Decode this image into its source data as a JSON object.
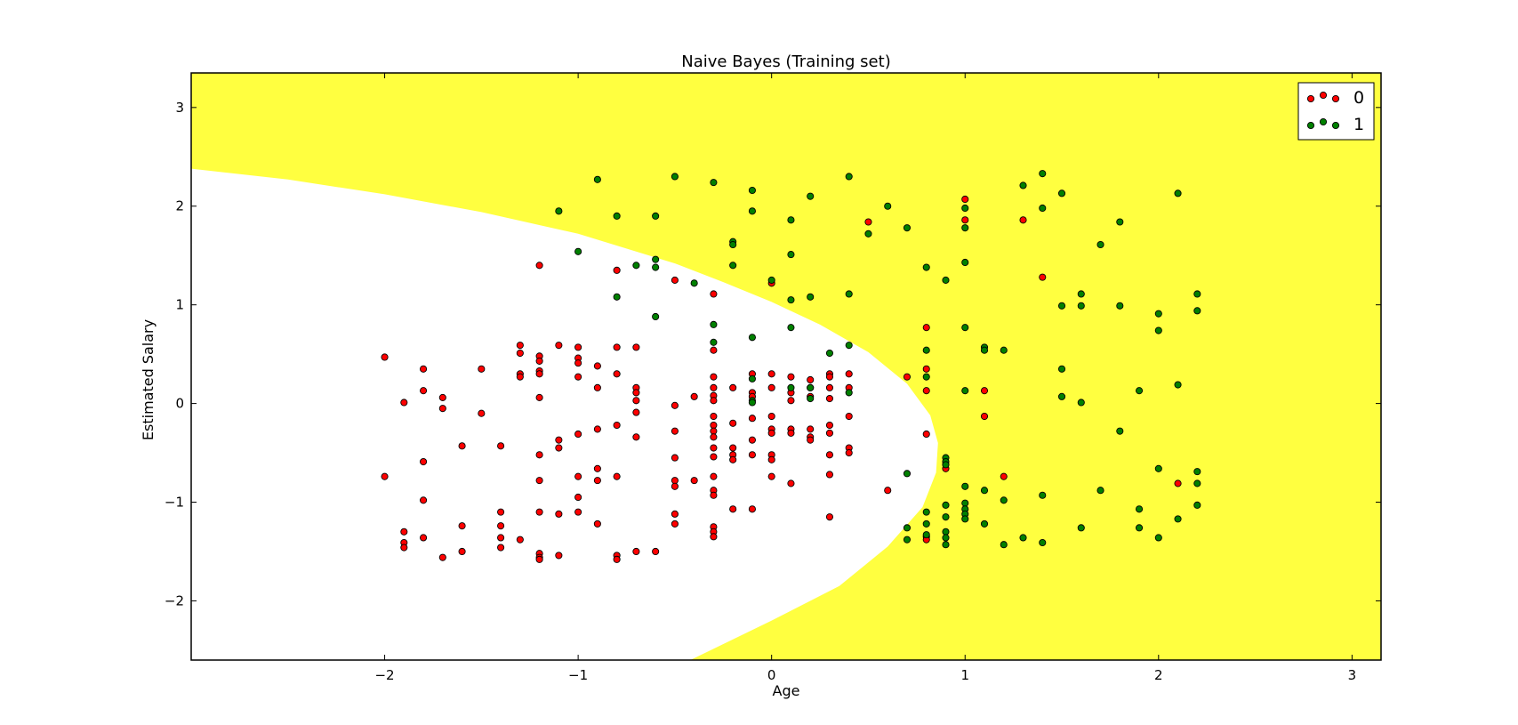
{
  "chart_data": {
    "type": "scatter",
    "title": "Naive Bayes (Training set)",
    "xlabel": "Age",
    "ylabel": "Estimated Salary",
    "xlim": [
      -3.0,
      3.15
    ],
    "ylim": [
      -2.6,
      3.35
    ],
    "xticks": [
      -2,
      -1,
      0,
      1,
      2,
      3
    ],
    "yticks": [
      -2,
      -1,
      0,
      1,
      2,
      3
    ],
    "tick_labels": {
      "x": [
        "−2",
        "−1",
        "0",
        "1",
        "2",
        "3"
      ],
      "y": [
        "−2",
        "−1",
        "0",
        "1",
        "2",
        "3"
      ]
    },
    "grid": false,
    "legend_position": "top-right",
    "background": {
      "region_class_0_color": "#ffffff",
      "region_class_1_color": "#ffff40",
      "boundary_class_0_region": [
        [
          -3.0,
          2.38
        ],
        [
          -2.5,
          2.27
        ],
        [
          -2.0,
          2.12
        ],
        [
          -1.5,
          1.94
        ],
        [
          -1.0,
          1.72
        ],
        [
          -0.5,
          1.42
        ],
        [
          -0.25,
          1.23
        ],
        [
          0.0,
          1.03
        ],
        [
          0.25,
          0.8
        ],
        [
          0.5,
          0.52
        ],
        [
          0.7,
          0.2
        ],
        [
          0.82,
          -0.12
        ],
        [
          0.86,
          -0.4
        ],
        [
          0.85,
          -0.7
        ],
        [
          0.78,
          -1.05
        ],
        [
          0.6,
          -1.45
        ],
        [
          0.35,
          -1.85
        ],
        [
          0.0,
          -2.2
        ],
        [
          -0.42,
          -2.6
        ]
      ]
    },
    "series": [
      {
        "name": "0",
        "color": "#ff0000",
        "points": [
          [
            -2.0,
            0.47
          ],
          [
            -2.0,
            -0.74
          ],
          [
            -1.9,
            0.01
          ],
          [
            -1.9,
            -1.3
          ],
          [
            -1.9,
            -1.41
          ],
          [
            -1.9,
            -1.46
          ],
          [
            -1.8,
            0.35
          ],
          [
            -1.8,
            0.13
          ],
          [
            -1.8,
            -0.59
          ],
          [
            -1.8,
            -0.98
          ],
          [
            -1.8,
            -1.36
          ],
          [
            -1.7,
            0.06
          ],
          [
            -1.7,
            -0.05
          ],
          [
            -1.7,
            -1.56
          ],
          [
            -1.6,
            -0.43
          ],
          [
            -1.6,
            -1.24
          ],
          [
            -1.6,
            -1.5
          ],
          [
            -1.5,
            0.35
          ],
          [
            -1.5,
            -0.1
          ],
          [
            -1.4,
            -0.43
          ],
          [
            -1.4,
            -1.1
          ],
          [
            -1.4,
            -1.24
          ],
          [
            -1.4,
            -1.36
          ],
          [
            -1.4,
            -1.46
          ],
          [
            -1.3,
            0.59
          ],
          [
            -1.3,
            0.51
          ],
          [
            -1.3,
            0.3
          ],
          [
            -1.3,
            0.27
          ],
          [
            -1.3,
            -1.38
          ],
          [
            -1.2,
            1.4
          ],
          [
            -1.2,
            0.48
          ],
          [
            -1.2,
            0.43
          ],
          [
            -1.2,
            0.33
          ],
          [
            -1.2,
            0.3
          ],
          [
            -1.2,
            0.06
          ],
          [
            -1.2,
            -0.52
          ],
          [
            -1.2,
            -0.78
          ],
          [
            -1.2,
            -1.1
          ],
          [
            -1.2,
            -1.52
          ],
          [
            -1.2,
            -1.56
          ],
          [
            -1.2,
            -1.58
          ],
          [
            -1.1,
            0.59
          ],
          [
            -1.1,
            -0.37
          ],
          [
            -1.1,
            -0.45
          ],
          [
            -1.1,
            -1.12
          ],
          [
            -1.1,
            -1.54
          ],
          [
            -1.0,
            0.57
          ],
          [
            -1.0,
            0.46
          ],
          [
            -1.0,
            0.41
          ],
          [
            -1.0,
            0.27
          ],
          [
            -1.0,
            -0.31
          ],
          [
            -1.0,
            -0.74
          ],
          [
            -1.0,
            -0.95
          ],
          [
            -1.0,
            -1.1
          ],
          [
            -0.9,
            0.38
          ],
          [
            -0.9,
            0.16
          ],
          [
            -0.9,
            -0.26
          ],
          [
            -0.9,
            -0.66
          ],
          [
            -0.9,
            -0.78
          ],
          [
            -0.9,
            -1.22
          ],
          [
            -0.8,
            1.35
          ],
          [
            -0.8,
            0.57
          ],
          [
            -0.8,
            0.3
          ],
          [
            -0.8,
            -0.22
          ],
          [
            -0.8,
            -0.74
          ],
          [
            -0.8,
            -1.54
          ],
          [
            -0.8,
            -1.58
          ],
          [
            -0.7,
            0.57
          ],
          [
            -0.7,
            0.16
          ],
          [
            -0.7,
            0.11
          ],
          [
            -0.7,
            0.03
          ],
          [
            -0.7,
            -0.09
          ],
          [
            -0.7,
            -0.34
          ],
          [
            -0.7,
            -1.5
          ],
          [
            -0.6,
            -1.5
          ],
          [
            -0.5,
            1.25
          ],
          [
            -0.5,
            -0.02
          ],
          [
            -0.5,
            -0.28
          ],
          [
            -0.5,
            -0.55
          ],
          [
            -0.5,
            -0.78
          ],
          [
            -0.5,
            -0.84
          ],
          [
            -0.5,
            -1.12
          ],
          [
            -0.5,
            -1.22
          ],
          [
            -0.4,
            0.07
          ],
          [
            -0.4,
            -0.78
          ],
          [
            -0.3,
            1.11
          ],
          [
            -0.3,
            0.54
          ],
          [
            -0.3,
            0.27
          ],
          [
            -0.3,
            0.16
          ],
          [
            -0.3,
            0.08
          ],
          [
            -0.3,
            0.03
          ],
          [
            -0.3,
            -0.13
          ],
          [
            -0.3,
            -0.22
          ],
          [
            -0.3,
            -0.28
          ],
          [
            -0.3,
            -0.34
          ],
          [
            -0.3,
            -0.45
          ],
          [
            -0.3,
            -0.54
          ],
          [
            -0.3,
            -0.74
          ],
          [
            -0.3,
            -0.88
          ],
          [
            -0.3,
            -0.93
          ],
          [
            -0.3,
            -1.25
          ],
          [
            -0.3,
            -1.3
          ],
          [
            -0.3,
            -1.35
          ],
          [
            -0.2,
            0.16
          ],
          [
            -0.2,
            -0.2
          ],
          [
            -0.2,
            -0.45
          ],
          [
            -0.2,
            -0.52
          ],
          [
            -0.2,
            -0.57
          ],
          [
            -0.2,
            -1.07
          ],
          [
            -0.1,
            0.3
          ],
          [
            -0.1,
            0.11
          ],
          [
            -0.1,
            0.07
          ],
          [
            -0.1,
            -0.15
          ],
          [
            -0.1,
            -0.37
          ],
          [
            -0.1,
            -0.52
          ],
          [
            -0.1,
            -1.07
          ],
          [
            0.0,
            1.22
          ],
          [
            0.0,
            0.3
          ],
          [
            0.0,
            0.16
          ],
          [
            0.0,
            -0.13
          ],
          [
            0.0,
            -0.26
          ],
          [
            0.0,
            -0.3
          ],
          [
            0.0,
            -0.52
          ],
          [
            0.0,
            -0.57
          ],
          [
            0.0,
            -0.74
          ],
          [
            0.1,
            0.27
          ],
          [
            0.1,
            0.11
          ],
          [
            0.1,
            0.03
          ],
          [
            0.1,
            -0.26
          ],
          [
            0.1,
            -0.3
          ],
          [
            0.1,
            -0.81
          ],
          [
            0.2,
            0.24
          ],
          [
            0.2,
            0.16
          ],
          [
            0.2,
            0.07
          ],
          [
            0.2,
            -0.26
          ],
          [
            0.2,
            -0.34
          ],
          [
            0.2,
            -0.37
          ],
          [
            0.3,
            0.3
          ],
          [
            0.3,
            0.27
          ],
          [
            0.3,
            0.16
          ],
          [
            0.3,
            0.05
          ],
          [
            0.3,
            -0.22
          ],
          [
            0.3,
            -0.3
          ],
          [
            0.3,
            -0.52
          ],
          [
            0.3,
            -0.72
          ],
          [
            0.3,
            -1.15
          ],
          [
            0.4,
            0.3
          ],
          [
            0.4,
            0.16
          ],
          [
            0.4,
            -0.13
          ],
          [
            0.4,
            -0.45
          ],
          [
            0.4,
            -0.5
          ],
          [
            0.5,
            1.84
          ],
          [
            0.6,
            -0.88
          ],
          [
            0.7,
            0.27
          ],
          [
            0.8,
            0.77
          ],
          [
            0.8,
            0.35
          ],
          [
            0.8,
            0.13
          ],
          [
            0.8,
            -0.31
          ],
          [
            0.8,
            -1.35
          ],
          [
            0.8,
            -1.38
          ],
          [
            0.9,
            -0.66
          ],
          [
            1.0,
            2.07
          ],
          [
            1.0,
            1.86
          ],
          [
            1.1,
            0.13
          ],
          [
            1.1,
            -0.13
          ],
          [
            1.2,
            -0.74
          ],
          [
            1.3,
            1.86
          ],
          [
            1.4,
            1.28
          ],
          [
            2.1,
            -0.81
          ]
        ]
      },
      {
        "name": "1",
        "color": "#008000",
        "points": [
          [
            -1.1,
            1.95
          ],
          [
            -1.0,
            1.54
          ],
          [
            -0.9,
            2.27
          ],
          [
            -0.8,
            1.9
          ],
          [
            -0.8,
            1.08
          ],
          [
            -0.7,
            1.4
          ],
          [
            -0.6,
            1.9
          ],
          [
            -0.6,
            1.46
          ],
          [
            -0.6,
            1.38
          ],
          [
            -0.6,
            0.88
          ],
          [
            -0.5,
            2.3
          ],
          [
            -0.4,
            1.22
          ],
          [
            -0.3,
            2.24
          ],
          [
            -0.3,
            0.8
          ],
          [
            -0.3,
            0.62
          ],
          [
            -0.2,
            1.64
          ],
          [
            -0.2,
            1.61
          ],
          [
            -0.2,
            1.4
          ],
          [
            -0.1,
            2.16
          ],
          [
            -0.1,
            1.95
          ],
          [
            -0.1,
            0.67
          ],
          [
            -0.1,
            0.25
          ],
          [
            -0.1,
            0.03
          ],
          [
            -0.1,
            0.01
          ],
          [
            0.0,
            1.25
          ],
          [
            0.1,
            1.86
          ],
          [
            0.1,
            1.51
          ],
          [
            0.1,
            1.05
          ],
          [
            0.1,
            0.77
          ],
          [
            0.1,
            0.16
          ],
          [
            0.2,
            2.1
          ],
          [
            0.2,
            1.08
          ],
          [
            0.2,
            0.16
          ],
          [
            0.2,
            0.05
          ],
          [
            0.3,
            0.51
          ],
          [
            0.4,
            2.3
          ],
          [
            0.4,
            1.11
          ],
          [
            0.4,
            0.59
          ],
          [
            0.4,
            0.11
          ],
          [
            0.5,
            1.72
          ],
          [
            0.6,
            2.0
          ],
          [
            0.7,
            1.78
          ],
          [
            0.7,
            -0.71
          ],
          [
            0.7,
            -1.26
          ],
          [
            0.7,
            -1.38
          ],
          [
            0.8,
            1.38
          ],
          [
            0.8,
            0.54
          ],
          [
            0.8,
            0.27
          ],
          [
            0.8,
            -1.1
          ],
          [
            0.8,
            -1.22
          ],
          [
            0.8,
            -1.33
          ],
          [
            0.9,
            1.25
          ],
          [
            0.9,
            -0.55
          ],
          [
            0.9,
            -0.59
          ],
          [
            0.9,
            -0.62
          ],
          [
            0.9,
            -1.03
          ],
          [
            0.9,
            -1.15
          ],
          [
            0.9,
            -1.3
          ],
          [
            0.9,
            -1.36
          ],
          [
            0.9,
            -1.43
          ],
          [
            1.0,
            1.98
          ],
          [
            1.0,
            1.78
          ],
          [
            1.0,
            1.43
          ],
          [
            1.0,
            0.77
          ],
          [
            1.0,
            0.13
          ],
          [
            1.0,
            -0.84
          ],
          [
            1.0,
            -1.01
          ],
          [
            1.0,
            -1.07
          ],
          [
            1.0,
            -1.12
          ],
          [
            1.0,
            -1.17
          ],
          [
            1.1,
            0.57
          ],
          [
            1.1,
            0.54
          ],
          [
            1.1,
            -0.88
          ],
          [
            1.1,
            -1.22
          ],
          [
            1.2,
            0.54
          ],
          [
            1.2,
            -0.98
          ],
          [
            1.2,
            -1.43
          ],
          [
            1.3,
            2.21
          ],
          [
            1.3,
            -1.36
          ],
          [
            1.4,
            2.33
          ],
          [
            1.4,
            1.98
          ],
          [
            1.4,
            -0.93
          ],
          [
            1.4,
            -1.41
          ],
          [
            1.5,
            2.13
          ],
          [
            1.5,
            0.99
          ],
          [
            1.5,
            0.35
          ],
          [
            1.5,
            0.07
          ],
          [
            1.6,
            1.11
          ],
          [
            1.6,
            0.99
          ],
          [
            1.6,
            0.01
          ],
          [
            1.6,
            -1.26
          ],
          [
            1.7,
            1.61
          ],
          [
            1.7,
            -0.88
          ],
          [
            1.8,
            1.84
          ],
          [
            1.8,
            0.99
          ],
          [
            1.8,
            -0.28
          ],
          [
            1.9,
            0.13
          ],
          [
            1.9,
            -1.07
          ],
          [
            1.9,
            -1.26
          ],
          [
            2.0,
            0.91
          ],
          [
            2.0,
            0.74
          ],
          [
            2.0,
            -0.66
          ],
          [
            2.0,
            -1.36
          ],
          [
            2.1,
            2.13
          ],
          [
            2.1,
            0.19
          ],
          [
            2.1,
            -1.17
          ],
          [
            2.2,
            1.11
          ],
          [
            2.2,
            0.94
          ],
          [
            2.2,
            -0.69
          ],
          [
            2.2,
            -0.81
          ],
          [
            2.2,
            -1.03
          ]
        ]
      }
    ]
  }
}
